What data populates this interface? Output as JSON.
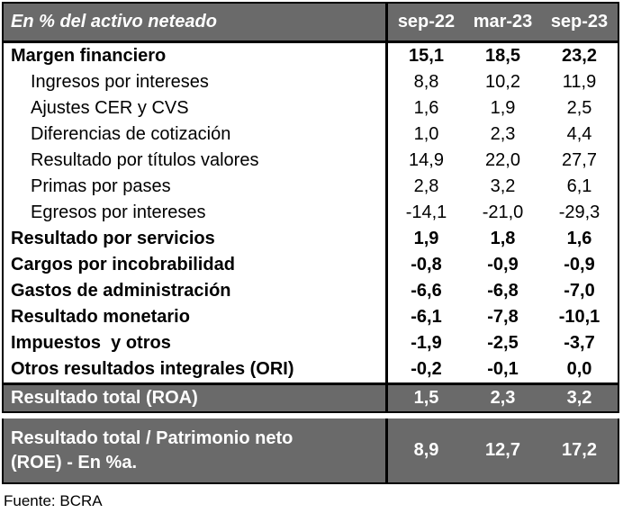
{
  "table": {
    "header": {
      "title": "En % del activo neteado",
      "columns": [
        "sep-22",
        "mar-23",
        "sep-23"
      ]
    },
    "rows": [
      {
        "label": "Margen financiero",
        "style": "bold",
        "values": [
          "15,1",
          "18,5",
          "23,2"
        ]
      },
      {
        "label": "Ingresos por intereses",
        "style": "sub",
        "values": [
          "8,8",
          "10,2",
          "11,9"
        ]
      },
      {
        "label": "Ajustes CER y CVS",
        "style": "sub",
        "values": [
          "1,6",
          "1,9",
          "2,5"
        ]
      },
      {
        "label": "Diferencias de cotización",
        "style": "sub",
        "values": [
          "1,0",
          "2,3",
          "4,4"
        ]
      },
      {
        "label": "Resultado por títulos valores",
        "style": "sub",
        "values": [
          "14,9",
          "22,0",
          "27,7"
        ]
      },
      {
        "label": "Primas por pases",
        "style": "sub",
        "values": [
          "2,8",
          "3,2",
          "6,1"
        ]
      },
      {
        "label": "Egresos por intereses",
        "style": "sub",
        "values": [
          "-14,1",
          "-21,0",
          "-29,3"
        ]
      },
      {
        "label": "Resultado por servicios",
        "style": "bold",
        "values": [
          "1,9",
          "1,8",
          "1,6"
        ]
      },
      {
        "label": "Cargos por incobrabilidad",
        "style": "bold",
        "values": [
          "-0,8",
          "-0,9",
          "-0,9"
        ]
      },
      {
        "label": "Gastos de administración",
        "style": "bold",
        "values": [
          "-6,6",
          "-6,8",
          "-7,0"
        ]
      },
      {
        "label": "Resultado monetario",
        "style": "bold",
        "values": [
          "-6,1",
          "-7,8",
          "-10,1"
        ]
      },
      {
        "label": "Impuestos  y otros",
        "style": "bold",
        "values": [
          "-1,9",
          "-2,5",
          "-3,7"
        ]
      },
      {
        "label": "Otros resultados integrales (ORI)",
        "style": "bold",
        "values": [
          "-0,2",
          "-0,1",
          "0,0"
        ]
      }
    ],
    "total_roa": {
      "label": "Resultado total (ROA)",
      "values": [
        "1,5",
        "2,3",
        "3,2"
      ]
    },
    "total_roe": {
      "label": "Resultado total / Patrimonio neto\n(ROE) - En %a.",
      "values": [
        "8,9",
        "12,7",
        "17,2"
      ]
    }
  },
  "footer": {
    "source": "Fuente: BCRA"
  },
  "colors": {
    "header_bg": "#6a6a6a",
    "total_bg": "#6a6a6a",
    "border": "#000000",
    "header_text": "#ffffff",
    "body_text": "#000000"
  },
  "chart_data": {
    "type": "table",
    "title": "En % del activo neteado",
    "columns": [
      "sep-22",
      "mar-23",
      "sep-23"
    ],
    "rows": [
      {
        "label": "Margen financiero",
        "emphasis": "bold",
        "values": [
          15.1,
          18.5,
          23.2
        ]
      },
      {
        "label": "Ingresos por intereses",
        "emphasis": "sub-item",
        "values": [
          8.8,
          10.2,
          11.9
        ]
      },
      {
        "label": "Ajustes CER y CVS",
        "emphasis": "sub-item",
        "values": [
          1.6,
          1.9,
          2.5
        ]
      },
      {
        "label": "Diferencias de cotización",
        "emphasis": "sub-item",
        "values": [
          1.0,
          2.3,
          4.4
        ]
      },
      {
        "label": "Resultado por títulos valores",
        "emphasis": "sub-item",
        "values": [
          14.9,
          22.0,
          27.7
        ]
      },
      {
        "label": "Primas por pases",
        "emphasis": "sub-item",
        "values": [
          2.8,
          3.2,
          6.1
        ]
      },
      {
        "label": "Egresos por intereses",
        "emphasis": "sub-item",
        "values": [
          -14.1,
          -21.0,
          -29.3
        ]
      },
      {
        "label": "Resultado por servicios",
        "emphasis": "bold",
        "values": [
          1.9,
          1.8,
          1.6
        ]
      },
      {
        "label": "Cargos por incobrabilidad",
        "emphasis": "bold",
        "values": [
          -0.8,
          -0.9,
          -0.9
        ]
      },
      {
        "label": "Gastos de administración",
        "emphasis": "bold",
        "values": [
          -6.6,
          -6.8,
          -7.0
        ]
      },
      {
        "label": "Resultado monetario",
        "emphasis": "bold",
        "values": [
          -6.1,
          -7.8,
          -10.1
        ]
      },
      {
        "label": "Impuestos y otros",
        "emphasis": "bold",
        "values": [
          -1.9,
          -2.5,
          -3.7
        ]
      },
      {
        "label": "Otros resultados integrales (ORI)",
        "emphasis": "bold",
        "values": [
          -0.2,
          -0.1,
          0.0
        ]
      },
      {
        "label": "Resultado total (ROA)",
        "emphasis": "total",
        "values": [
          1.5,
          2.3,
          3.2
        ]
      },
      {
        "label": "Resultado total / Patrimonio neto (ROE) - En %a.",
        "emphasis": "total",
        "values": [
          8.9,
          12.7,
          17.2
        ]
      }
    ],
    "source": "Fuente: BCRA",
    "decimal_separator": ","
  }
}
